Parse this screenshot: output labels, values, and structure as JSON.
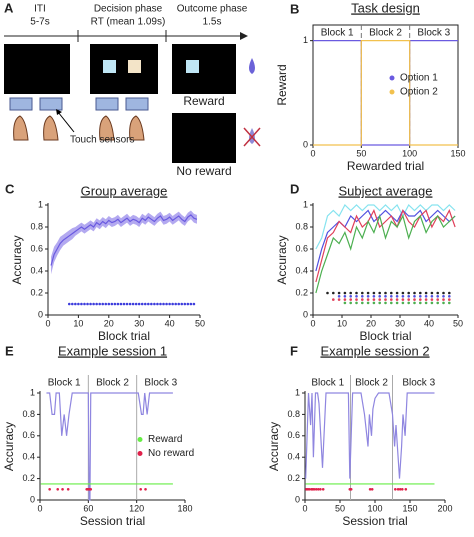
{
  "diagram": {
    "panel": "A",
    "phases": [
      {
        "name": "ITI",
        "duration": "5-7s"
      },
      {
        "name": "Decision phase",
        "duration": "RT (mean 1.09s)"
      },
      {
        "name": "Outcome phase",
        "duration": "1.5s"
      }
    ],
    "sensor_label": "Touch sensors",
    "reward_label": "Reward",
    "no_reward_label": "No reward"
  },
  "chart_data": [
    {
      "type": "line",
      "panel": "B",
      "title": "Task design",
      "xlabel": "Rewarded trial",
      "ylabel": "Reward",
      "xlim": [
        0,
        150
      ],
      "xticks": [
        0,
        50,
        100,
        150
      ],
      "ylim": [
        0,
        1.15
      ],
      "yticks": [
        0,
        1
      ],
      "box": true,
      "legend": "right",
      "blocks": [
        "Block 1",
        "Block 2",
        "Block 3"
      ],
      "block_boundaries": [
        50,
        100
      ],
      "block_line_style": "dashed",
      "series": [
        {
          "name": "Option 1",
          "color": "#6a5ae0",
          "x": [
            0,
            50,
            50,
            100,
            100,
            150
          ],
          "values": [
            1,
            1,
            0,
            0,
            1,
            1
          ]
        },
        {
          "name": "Option 2",
          "color": "#f2c14e",
          "x": [
            0,
            50,
            50,
            100,
            100,
            150
          ],
          "values": [
            0,
            0,
            1,
            1,
            0,
            0
          ]
        }
      ]
    },
    {
      "type": "line",
      "panel": "C",
      "title": "Group average",
      "xlabel": "Block trial",
      "ylabel": "Accuracy",
      "xlim": [
        0,
        50
      ],
      "xticks": [
        0,
        10,
        20,
        30,
        40,
        50
      ],
      "ylim": [
        0,
        1
      ],
      "yticks": [
        0,
        0.2,
        0.4,
        0.6,
        0.8,
        1
      ],
      "series": [
        {
          "color": "#6a5ae0",
          "band_color": "#b3a9f0",
          "x": [
            1,
            2,
            3,
            4,
            5,
            6,
            7,
            8,
            9,
            10,
            11,
            12,
            13,
            14,
            15,
            16,
            17,
            18,
            19,
            20,
            21,
            22,
            23,
            24,
            25,
            26,
            27,
            28,
            29,
            30,
            31,
            32,
            33,
            34,
            35,
            36,
            37,
            38,
            39,
            40,
            41,
            42,
            43,
            44,
            45,
            46,
            47,
            48,
            49
          ],
          "values": [
            0.45,
            0.55,
            0.6,
            0.65,
            0.68,
            0.7,
            0.72,
            0.74,
            0.76,
            0.78,
            0.8,
            0.78,
            0.8,
            0.82,
            0.8,
            0.84,
            0.82,
            0.85,
            0.83,
            0.86,
            0.84,
            0.85,
            0.87,
            0.84,
            0.86,
            0.88,
            0.85,
            0.87,
            0.86,
            0.84,
            0.88,
            0.86,
            0.89,
            0.87,
            0.85,
            0.88,
            0.9,
            0.86,
            0.87,
            0.89,
            0.86,
            0.88,
            0.9,
            0.87,
            0.85,
            0.89,
            0.91,
            0.88,
            0.87
          ],
          "error": [
            0.08,
            0.07,
            0.06,
            0.06,
            0.05,
            0.05,
            0.05,
            0.05,
            0.04,
            0.04,
            0.04,
            0.04,
            0.04,
            0.04,
            0.04,
            0.04,
            0.04,
            0.04,
            0.04,
            0.04,
            0.04,
            0.04,
            0.04,
            0.04,
            0.04,
            0.04,
            0.04,
            0.04,
            0.04,
            0.04,
            0.04,
            0.04,
            0.04,
            0.04,
            0.04,
            0.04,
            0.04,
            0.04,
            0.04,
            0.04,
            0.04,
            0.04,
            0.04,
            0.04,
            0.04,
            0.04,
            0.04,
            0.04,
            0.04
          ]
        },
        {
          "color": "#3c3cdc",
          "style": "markers",
          "x": [
            7,
            8,
            9,
            10,
            11,
            12,
            13,
            14,
            15,
            16,
            17,
            18,
            19,
            20,
            21,
            22,
            23,
            24,
            25,
            26,
            27,
            28,
            29,
            30,
            31,
            32,
            33,
            34,
            35,
            36,
            37,
            38,
            39,
            40,
            41,
            42,
            43,
            44,
            45,
            46,
            47,
            48
          ],
          "values": [
            0.1,
            0.1,
            0.1,
            0.1,
            0.1,
            0.1,
            0.1,
            0.1,
            0.1,
            0.1,
            0.1,
            0.1,
            0.1,
            0.1,
            0.1,
            0.1,
            0.1,
            0.1,
            0.1,
            0.1,
            0.1,
            0.1,
            0.1,
            0.1,
            0.1,
            0.1,
            0.1,
            0.1,
            0.1,
            0.1,
            0.1,
            0.1,
            0.1,
            0.1,
            0.1,
            0.1,
            0.1,
            0.1,
            0.1,
            0.1,
            0.1,
            0.1
          ]
        }
      ]
    },
    {
      "type": "line",
      "panel": "D",
      "title": "Subject average",
      "xlabel": "Block trial",
      "ylabel": "Accuracy",
      "xlim": [
        0,
        50
      ],
      "xticks": [
        0,
        10,
        20,
        30,
        40,
        50
      ],
      "ylim": [
        0,
        1
      ],
      "yticks": [
        0,
        0.2,
        0.4,
        0.6,
        0.8,
        1
      ],
      "series": [
        {
          "color": "#86e3ef",
          "x": [
            1,
            3,
            5,
            7,
            9,
            11,
            13,
            15,
            17,
            19,
            21,
            23,
            25,
            27,
            29,
            31,
            33,
            35,
            37,
            39,
            41,
            43,
            45,
            47,
            49
          ],
          "values": [
            0.6,
            0.7,
            0.9,
            0.95,
            0.9,
            1,
            0.95,
            1,
            0.95,
            1,
            1,
            0.95,
            1,
            0.95,
            1,
            0.9,
            1,
            0.95,
            1,
            0.95,
            1,
            1,
            0.95,
            1,
            0.95
          ]
        },
        {
          "color": "#5050e0",
          "x": [
            1,
            3,
            5,
            7,
            9,
            11,
            13,
            15,
            17,
            19,
            21,
            23,
            25,
            27,
            29,
            31,
            33,
            35,
            37,
            39,
            41,
            43,
            45,
            47,
            49
          ],
          "values": [
            0.4,
            0.6,
            0.75,
            0.8,
            0.85,
            0.8,
            0.9,
            0.85,
            0.9,
            0.95,
            0.85,
            0.9,
            0.95,
            0.9,
            0.85,
            0.95,
            0.9,
            0.9,
            0.95,
            0.85,
            0.9,
            0.95,
            0.9,
            0.85,
            0.9
          ]
        },
        {
          "color": "#e0405a",
          "x": [
            1,
            3,
            5,
            7,
            9,
            11,
            13,
            15,
            17,
            19,
            21,
            23,
            25,
            27,
            29,
            31,
            33,
            35,
            37,
            39,
            41,
            43,
            45,
            47,
            49
          ],
          "values": [
            0.3,
            0.5,
            0.7,
            0.75,
            0.85,
            0.8,
            0.75,
            0.9,
            0.8,
            0.85,
            0.95,
            0.8,
            0.85,
            0.9,
            0.8,
            0.95,
            0.85,
            0.8,
            0.9,
            0.95,
            0.8,
            0.9,
            0.85,
            0.95,
            0.8
          ]
        },
        {
          "color": "#4caf50",
          "x": [
            1,
            3,
            5,
            7,
            9,
            11,
            13,
            15,
            17,
            19,
            21,
            23,
            25,
            27,
            29,
            31,
            33,
            35,
            37,
            39,
            41,
            43,
            45,
            47,
            49
          ],
          "values": [
            0.2,
            0.4,
            0.55,
            0.7,
            0.65,
            0.75,
            0.6,
            0.8,
            0.7,
            0.85,
            0.75,
            0.9,
            0.7,
            0.85,
            0.8,
            0.9,
            0.7,
            0.85,
            0.9,
            0.75,
            0.85,
            0.9,
            0.8,
            0.85,
            0.9
          ]
        },
        {
          "color": "#222222",
          "style": "markers",
          "x": [
            5,
            7,
            9,
            11,
            13,
            15,
            17,
            19,
            21,
            23,
            25,
            27,
            29,
            31,
            33,
            35,
            37,
            39,
            41,
            43,
            45,
            47
          ],
          "values": [
            0.2,
            0.2,
            0.2,
            0.2,
            0.2,
            0.2,
            0.2,
            0.2,
            0.2,
            0.2,
            0.2,
            0.2,
            0.2,
            0.2,
            0.2,
            0.2,
            0.2,
            0.2,
            0.2,
            0.2,
            0.2,
            0.2
          ]
        },
        {
          "color": "#5050e0",
          "style": "markers",
          "x": [
            9,
            11,
            13,
            15,
            17,
            19,
            21,
            23,
            25,
            27,
            29,
            31,
            33,
            35,
            37,
            39,
            41,
            43,
            45,
            47
          ],
          "values": [
            0.17,
            0.17,
            0.17,
            0.17,
            0.17,
            0.17,
            0.17,
            0.17,
            0.17,
            0.17,
            0.17,
            0.17,
            0.17,
            0.17,
            0.17,
            0.17,
            0.17,
            0.17,
            0.17,
            0.17
          ]
        },
        {
          "color": "#e0405a",
          "style": "markers",
          "x": [
            7,
            9,
            11,
            13,
            15,
            17,
            19,
            21,
            23,
            25,
            27,
            29,
            31,
            33,
            35,
            37,
            39,
            41,
            43,
            45,
            47
          ],
          "values": [
            0.14,
            0.14,
            0.14,
            0.14,
            0.14,
            0.14,
            0.14,
            0.14,
            0.14,
            0.14,
            0.14,
            0.14,
            0.14,
            0.14,
            0.14,
            0.14,
            0.14,
            0.14,
            0.14,
            0.14,
            0.14
          ]
        },
        {
          "color": "#4caf50",
          "style": "markers",
          "x": [
            11,
            13,
            15,
            17,
            19,
            21,
            23,
            25,
            27,
            29,
            31,
            33,
            35,
            37,
            39,
            41,
            43,
            45,
            47
          ],
          "values": [
            0.11,
            0.11,
            0.11,
            0.11,
            0.11,
            0.11,
            0.11,
            0.11,
            0.11,
            0.11,
            0.11,
            0.11,
            0.11,
            0.11,
            0.11,
            0.11,
            0.11,
            0.11,
            0.11
          ]
        }
      ]
    },
    {
      "type": "line",
      "panel": "E",
      "title": "Example session 1",
      "xlabel": "Session trial",
      "ylabel": "Accuracy",
      "xlim": [
        0,
        180
      ],
      "xticks": [
        0,
        60,
        120,
        180
      ],
      "ylim": [
        0,
        1
      ],
      "yticks": [
        0,
        0.2,
        0.4,
        0.6,
        0.8,
        1
      ],
      "legend": "right",
      "blocks": [
        "Block 1",
        "Block 2",
        "Block 3"
      ],
      "block_boundaries": [
        60,
        120
      ],
      "block_line_style": "solid",
      "series": [
        {
          "color": "#8f86e0",
          "x": [
            8,
            12,
            15,
            18,
            20,
            24,
            27,
            30,
            33,
            36,
            40,
            45,
            55,
            60,
            61,
            62,
            63,
            66,
            70,
            90,
            110,
            120,
            122,
            126,
            128,
            130,
            133,
            136,
            140,
            150,
            165
          ],
          "values": [
            1,
            1,
            0.8,
            0.8,
            1,
            1,
            0.6,
            0.8,
            0.6,
            0.8,
            1,
            1,
            1,
            1,
            0,
            0,
            1,
            1,
            1,
            1,
            1,
            1,
            1,
            0.8,
            0.8,
            1,
            0.8,
            1,
            1,
            1,
            1
          ]
        },
        {
          "name": "Reward",
          "color": "#66ee44",
          "x": [
            1,
            165
          ],
          "values": [
            0.15,
            0.15
          ]
        },
        {
          "name": "No reward",
          "color": "#e0204a",
          "style": "markers",
          "x": [
            12,
            22,
            28,
            35,
            58,
            59,
            60,
            61,
            62,
            63,
            125,
            131
          ],
          "values": [
            0.1,
            0.1,
            0.1,
            0.1,
            0.1,
            0.1,
            0.1,
            0.1,
            0.1,
            0.1,
            0.1,
            0.1
          ]
        }
      ]
    },
    {
      "type": "line",
      "panel": "F",
      "title": "Example session 2",
      "xlabel": "Session trial",
      "ylabel": "Accuracy",
      "xlim": [
        0,
        200
      ],
      "xticks": [
        0,
        50,
        100,
        150,
        200
      ],
      "ylim": [
        0,
        1
      ],
      "yticks": [
        0,
        0.2,
        0.4,
        0.6,
        0.8,
        1
      ],
      "blocks": [
        "Block 1",
        "Block 2",
        "Block 3"
      ],
      "block_boundaries": [
        65,
        125
      ],
      "block_line_style": "solid",
      "series": [
        {
          "color": "#8f86e0",
          "x": [
            1,
            3,
            5,
            8,
            10,
            12,
            15,
            18,
            20,
            25,
            30,
            40,
            55,
            62,
            64,
            66,
            68,
            75,
            80,
            85,
            90,
            92,
            95,
            97,
            100,
            105,
            110,
            120,
            125,
            128,
            130,
            135,
            138,
            140,
            143,
            146,
            150,
            160,
            175,
            185
          ],
          "values": [
            0.2,
            0.6,
            1,
            0.7,
            1,
            0.4,
            1,
            1,
            0.9,
            0.3,
            1,
            1,
            1,
            1,
            0.2,
            0.6,
            1,
            1,
            1,
            0.8,
            0.5,
            0.8,
            0.6,
            0.85,
            0.95,
            1,
            1,
            1,
            0.8,
            0.5,
            0.7,
            0.2,
            0.5,
            0.8,
            0.6,
            1,
            1,
            1,
            1,
            1
          ]
        },
        {
          "color": "#66ee44",
          "x": [
            1,
            185
          ],
          "values": [
            0.15,
            0.15
          ]
        },
        {
          "color": "#e0204a",
          "style": "markers",
          "x": [
            2,
            4,
            6,
            9,
            11,
            13,
            16,
            19,
            22,
            26,
            64,
            65,
            66,
            93,
            96,
            129,
            133,
            136,
            139,
            144
          ],
          "values": [
            0.1,
            0.1,
            0.1,
            0.1,
            0.1,
            0.1,
            0.1,
            0.1,
            0.1,
            0.1,
            0.1,
            0.1,
            0.1,
            0.1,
            0.1,
            0.1,
            0.1,
            0.1,
            0.1,
            0.1
          ]
        }
      ]
    }
  ]
}
